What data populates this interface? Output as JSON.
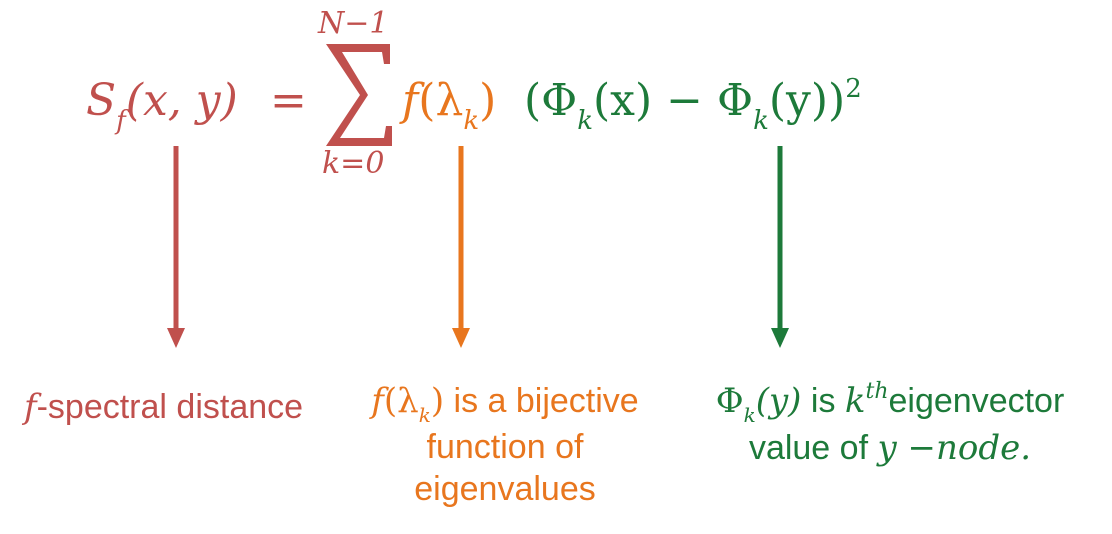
{
  "colors": {
    "red": "#c0504d",
    "orange": "#e8761e",
    "green": "#1d7a3a"
  },
  "equation": {
    "lhs_S": "S",
    "lhs_sub": "f",
    "lhs_args": "(x, y)",
    "equals": "=",
    "sum_symbol": "∑",
    "sum_upper": "N−1",
    "sum_lower": "k=0",
    "f_term": "f",
    "f_paren_open": "(λ",
    "f_sub": "k",
    "f_paren_close": ")",
    "phi_open": "(Φ",
    "phi_sub1": "k",
    "phi_mid": "(x) − Φ",
    "phi_sub2": "k",
    "phi_close": "(y))",
    "phi_power": "2"
  },
  "captions": {
    "red": {
      "f": "f",
      "text": "-spectral distance"
    },
    "orange": {
      "f": "f",
      "paren_open": "(λ",
      "sub": "k",
      "paren_close": ")",
      "line1_rest": " is a bijective",
      "line2": "function of",
      "line3": "eigenvalues"
    },
    "green": {
      "phi": "Φ",
      "sub": "k",
      "args": "(y)",
      "is": " is ",
      "k": "k",
      "sup": "th",
      "line1_rest": "eigenvector",
      "line2_prefix": "value of ",
      "y": "y",
      "minus": " −",
      "node": "node."
    }
  }
}
